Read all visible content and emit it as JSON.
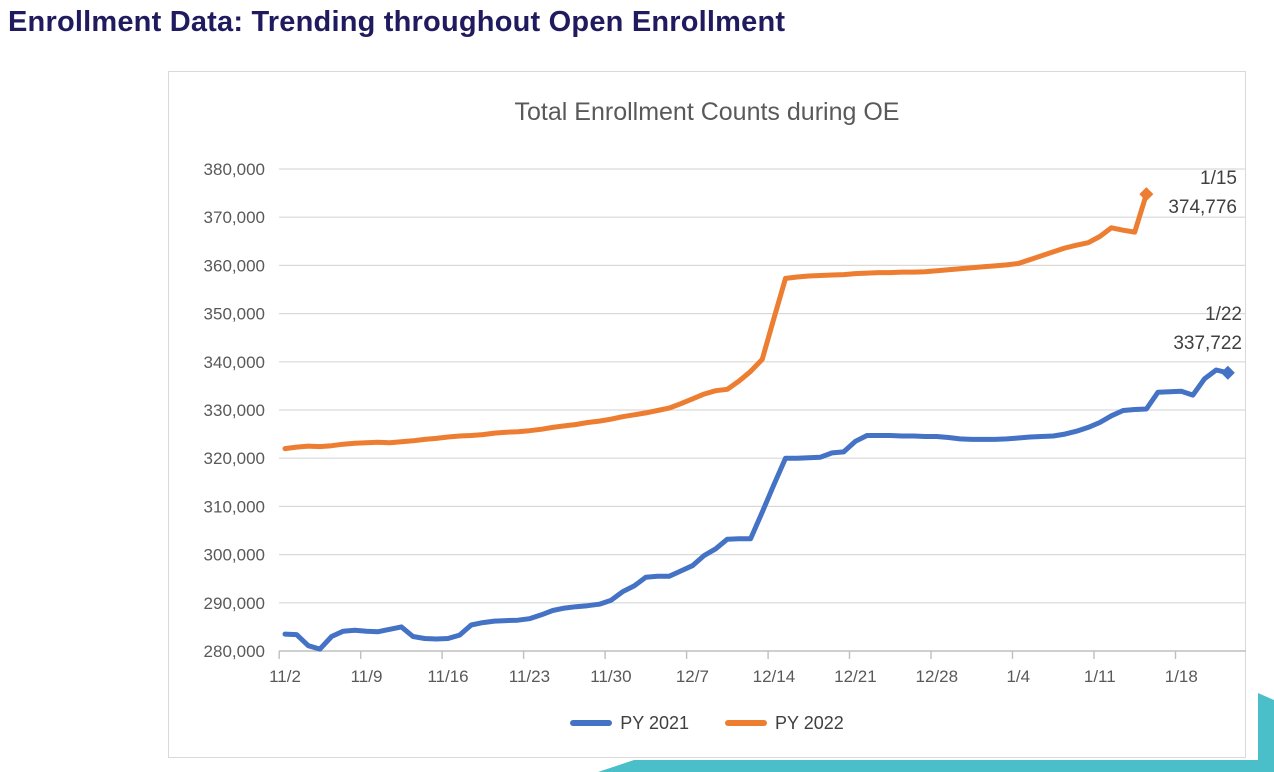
{
  "page": {
    "title": "Enrollment Data: Trending throughout Open Enrollment",
    "accent_color": "#4BBFC9",
    "title_color": "#1F1B5E"
  },
  "chart_data": {
    "type": "line",
    "title": "Total Enrollment Counts during OE",
    "xlabel": "",
    "ylabel": "",
    "ylim": [
      280000,
      380000
    ],
    "y_ticks": [
      280000,
      290000,
      300000,
      310000,
      320000,
      330000,
      340000,
      350000,
      360000,
      370000,
      380000
    ],
    "grid": "horizontal",
    "gridline_color": "#D9D9D9",
    "axis_line_color": "#BFBFBF",
    "tick_label_color": "#595959",
    "legend_position": "bottom",
    "x_axis": {
      "unit": "day",
      "start": "11/2",
      "ticks": [
        {
          "label": "11/2",
          "day": 0
        },
        {
          "label": "11/9",
          "day": 7
        },
        {
          "label": "11/16",
          "day": 14
        },
        {
          "label": "11/23",
          "day": 21
        },
        {
          "label": "11/30",
          "day": 28
        },
        {
          "label": "12/7",
          "day": 35
        },
        {
          "label": "12/14",
          "day": 42
        },
        {
          "label": "12/21",
          "day": 49
        },
        {
          "label": "12/28",
          "day": 56
        },
        {
          "label": "1/4",
          "day": 63
        },
        {
          "label": "1/11",
          "day": 70
        },
        {
          "label": "1/18",
          "day": 77
        }
      ]
    },
    "series": [
      {
        "name": "PY 2021",
        "color": "#4472C4",
        "end_marker": "diamond",
        "end_label": {
          "date": "1/22",
          "value": "337,722"
        },
        "values": [
          283500,
          283400,
          281100,
          280400,
          283000,
          284100,
          284300,
          284100,
          284000,
          284500,
          285000,
          283000,
          282600,
          282500,
          282600,
          283300,
          285400,
          285900,
          286200,
          286300,
          286400,
          286700,
          287500,
          288400,
          288900,
          289200,
          289400,
          289700,
          290500,
          292300,
          293500,
          295300,
          295500,
          295500,
          296600,
          297700,
          299800,
          301200,
          303200,
          303300,
          303300,
          308800,
          314500,
          320000,
          320000,
          320100,
          320200,
          321100,
          321300,
          323500,
          324700,
          324700,
          324700,
          324600,
          324600,
          324500,
          324500,
          324300,
          324000,
          323900,
          323900,
          323900,
          324000,
          324200,
          324400,
          324500,
          324600,
          325000,
          325600,
          326400,
          327400,
          328800,
          329900,
          330100,
          330200,
          333700,
          333800,
          333900,
          333100,
          336500,
          338300,
          337722
        ]
      },
      {
        "name": "PY 2022",
        "color": "#ED7D31",
        "end_marker": "diamond",
        "end_label": {
          "date": "1/15",
          "value": "374,776"
        },
        "values": [
          322000,
          322300,
          322500,
          322400,
          322600,
          322900,
          323100,
          323200,
          323300,
          323200,
          323400,
          323600,
          323900,
          324100,
          324400,
          324600,
          324700,
          324900,
          325200,
          325400,
          325500,
          325700,
          326000,
          326400,
          326700,
          327000,
          327400,
          327700,
          328100,
          328600,
          329000,
          329400,
          329900,
          330400,
          331300,
          332300,
          333300,
          334000,
          334300,
          336000,
          338000,
          340500,
          349000,
          357300,
          357600,
          357800,
          357900,
          358000,
          358100,
          358300,
          358400,
          358500,
          358500,
          358600,
          358600,
          358700,
          358900,
          359100,
          359300,
          359500,
          359700,
          359900,
          360100,
          360400,
          361200,
          362000,
          362800,
          363600,
          364200,
          364700,
          366000,
          367800,
          367300,
          366900,
          374776
        ]
      }
    ]
  }
}
